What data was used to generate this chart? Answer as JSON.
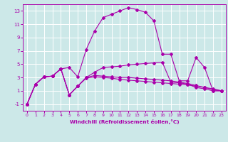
{
  "xlabel": "Windchill (Refroidissement éolien,°C)",
  "xlim": [
    -0.5,
    23.5
  ],
  "ylim": [
    -2,
    14
  ],
  "xticks": [
    0,
    1,
    2,
    3,
    4,
    5,
    6,
    7,
    8,
    9,
    10,
    11,
    12,
    13,
    14,
    15,
    16,
    17,
    18,
    19,
    20,
    21,
    22,
    23
  ],
  "yticks": [
    -1,
    1,
    3,
    5,
    7,
    9,
    11,
    13
  ],
  "bg_color": "#cce8e8",
  "line_color": "#aa00aa",
  "grid_color": "#ffffff",
  "lines": [
    {
      "x": [
        0,
        1,
        2,
        3,
        4,
        5,
        6,
        7,
        8,
        9,
        10,
        11,
        12,
        13,
        14,
        15,
        16,
        17,
        18,
        19,
        20,
        21,
        22,
        23
      ],
      "y": [
        -1,
        2,
        3.1,
        3.2,
        4.3,
        4.5,
        3.1,
        7.2,
        10,
        12,
        12.5,
        13,
        13.5,
        13.2,
        12.8,
        11.5,
        6.5,
        6.5,
        2.5,
        2.5,
        6,
        4.5,
        1.0,
        1.0
      ]
    },
    {
      "x": [
        0,
        1,
        2,
        3,
        4,
        5,
        6,
        7,
        8,
        9,
        10,
        11,
        12,
        13,
        14,
        15,
        16,
        17,
        18,
        19,
        20,
        21,
        22,
        23
      ],
      "y": [
        -1,
        2,
        3.1,
        3.2,
        4.3,
        0.4,
        1.7,
        3.0,
        3.8,
        4.5,
        4.6,
        4.7,
        4.9,
        5.0,
        5.1,
        5.2,
        5.3,
        2.3,
        2.2,
        2.0,
        1.5,
        1.3,
        1.0,
        1.0
      ]
    },
    {
      "x": [
        0,
        1,
        2,
        3,
        4,
        5,
        6,
        7,
        8,
        9,
        10,
        11,
        12,
        13,
        14,
        15,
        16,
        17,
        18,
        19,
        20,
        21,
        22,
        23
      ],
      "y": [
        -1,
        2,
        3.1,
        3.2,
        4.3,
        0.4,
        1.7,
        3.0,
        3.3,
        3.2,
        3.1,
        3.0,
        3.0,
        2.9,
        2.8,
        2.7,
        2.6,
        2.5,
        2.3,
        2.1,
        1.8,
        1.5,
        1.2,
        1.0
      ]
    },
    {
      "x": [
        0,
        1,
        2,
        3,
        4,
        5,
        6,
        7,
        8,
        9,
        10,
        11,
        12,
        13,
        14,
        15,
        16,
        17,
        18,
        19,
        20,
        21,
        22,
        23
      ],
      "y": [
        -1,
        2,
        3.1,
        3.2,
        4.3,
        0.4,
        1.7,
        2.9,
        3.1,
        3.0,
        2.9,
        2.7,
        2.6,
        2.5,
        2.4,
        2.3,
        2.2,
        2.1,
        2.0,
        1.9,
        1.7,
        1.5,
        1.3,
        1.0
      ]
    }
  ]
}
